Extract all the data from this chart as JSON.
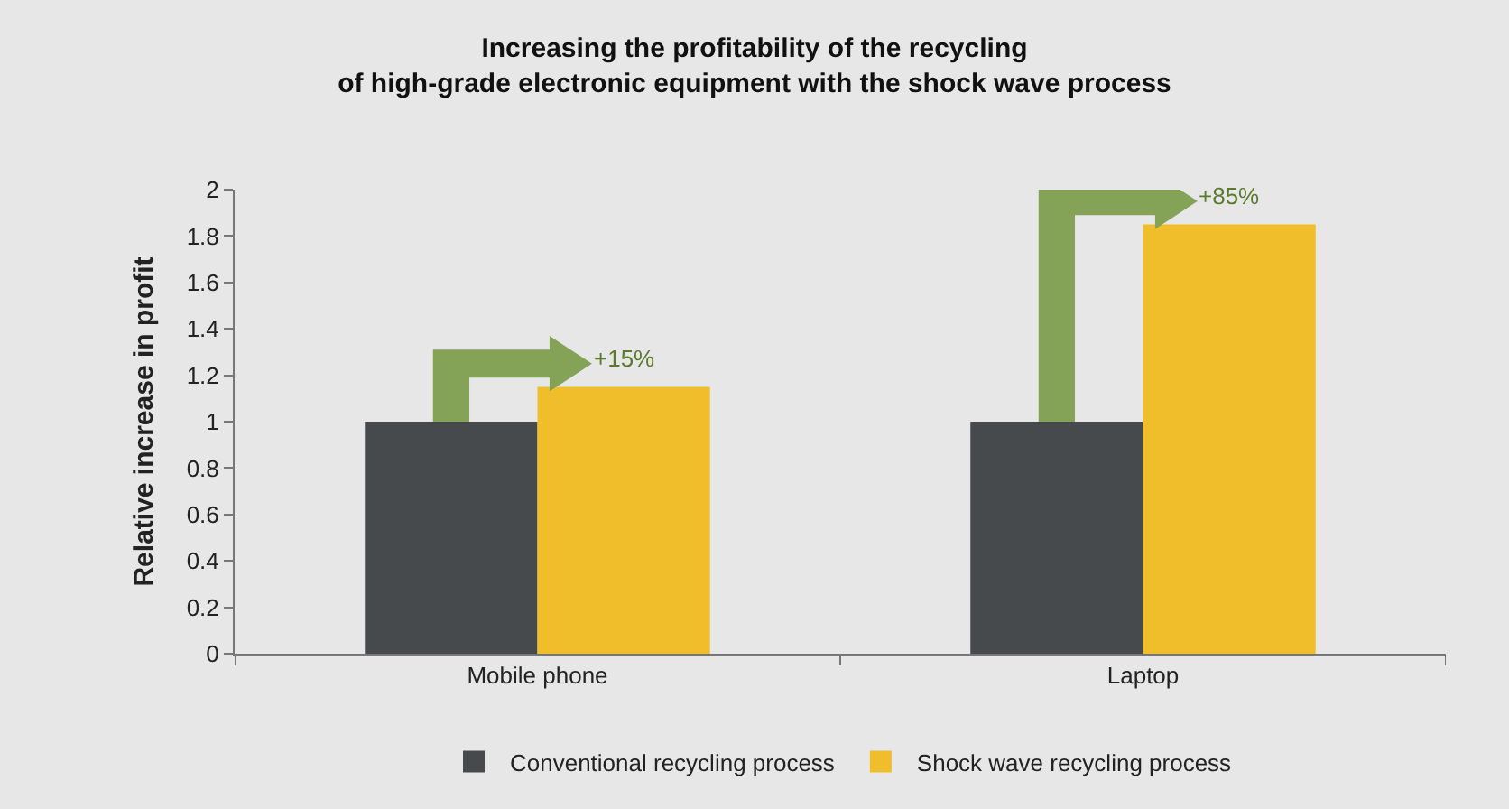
{
  "chart_data": {
    "type": "bar",
    "title": "Increasing the profitability of the recycling\nof high-grade electronic equipment with the shock wave process",
    "ylabel": "Relative increase in profit",
    "categories": [
      "Mobile phone",
      "Laptop"
    ],
    "series": [
      {
        "name": "Conventional recycling process",
        "color": "#464a4c",
        "values": [
          1,
          1
        ]
      },
      {
        "name": "Shock wave recycling process",
        "color": "#f0be2a",
        "values": [
          1.15,
          1.85
        ]
      }
    ],
    "annotations": [
      {
        "text": "+15%",
        "x": "Mobile phone",
        "y": 1.15
      },
      {
        "text": "+85%",
        "x": "Laptop",
        "y": 1.85
      }
    ],
    "ylim": [
      0,
      2
    ],
    "yticks": [
      0,
      0.2,
      0.4,
      0.6,
      0.8,
      1,
      1.2,
      1.4,
      1.6,
      1.8,
      2
    ],
    "grid": false,
    "legend": "bottom"
  }
}
